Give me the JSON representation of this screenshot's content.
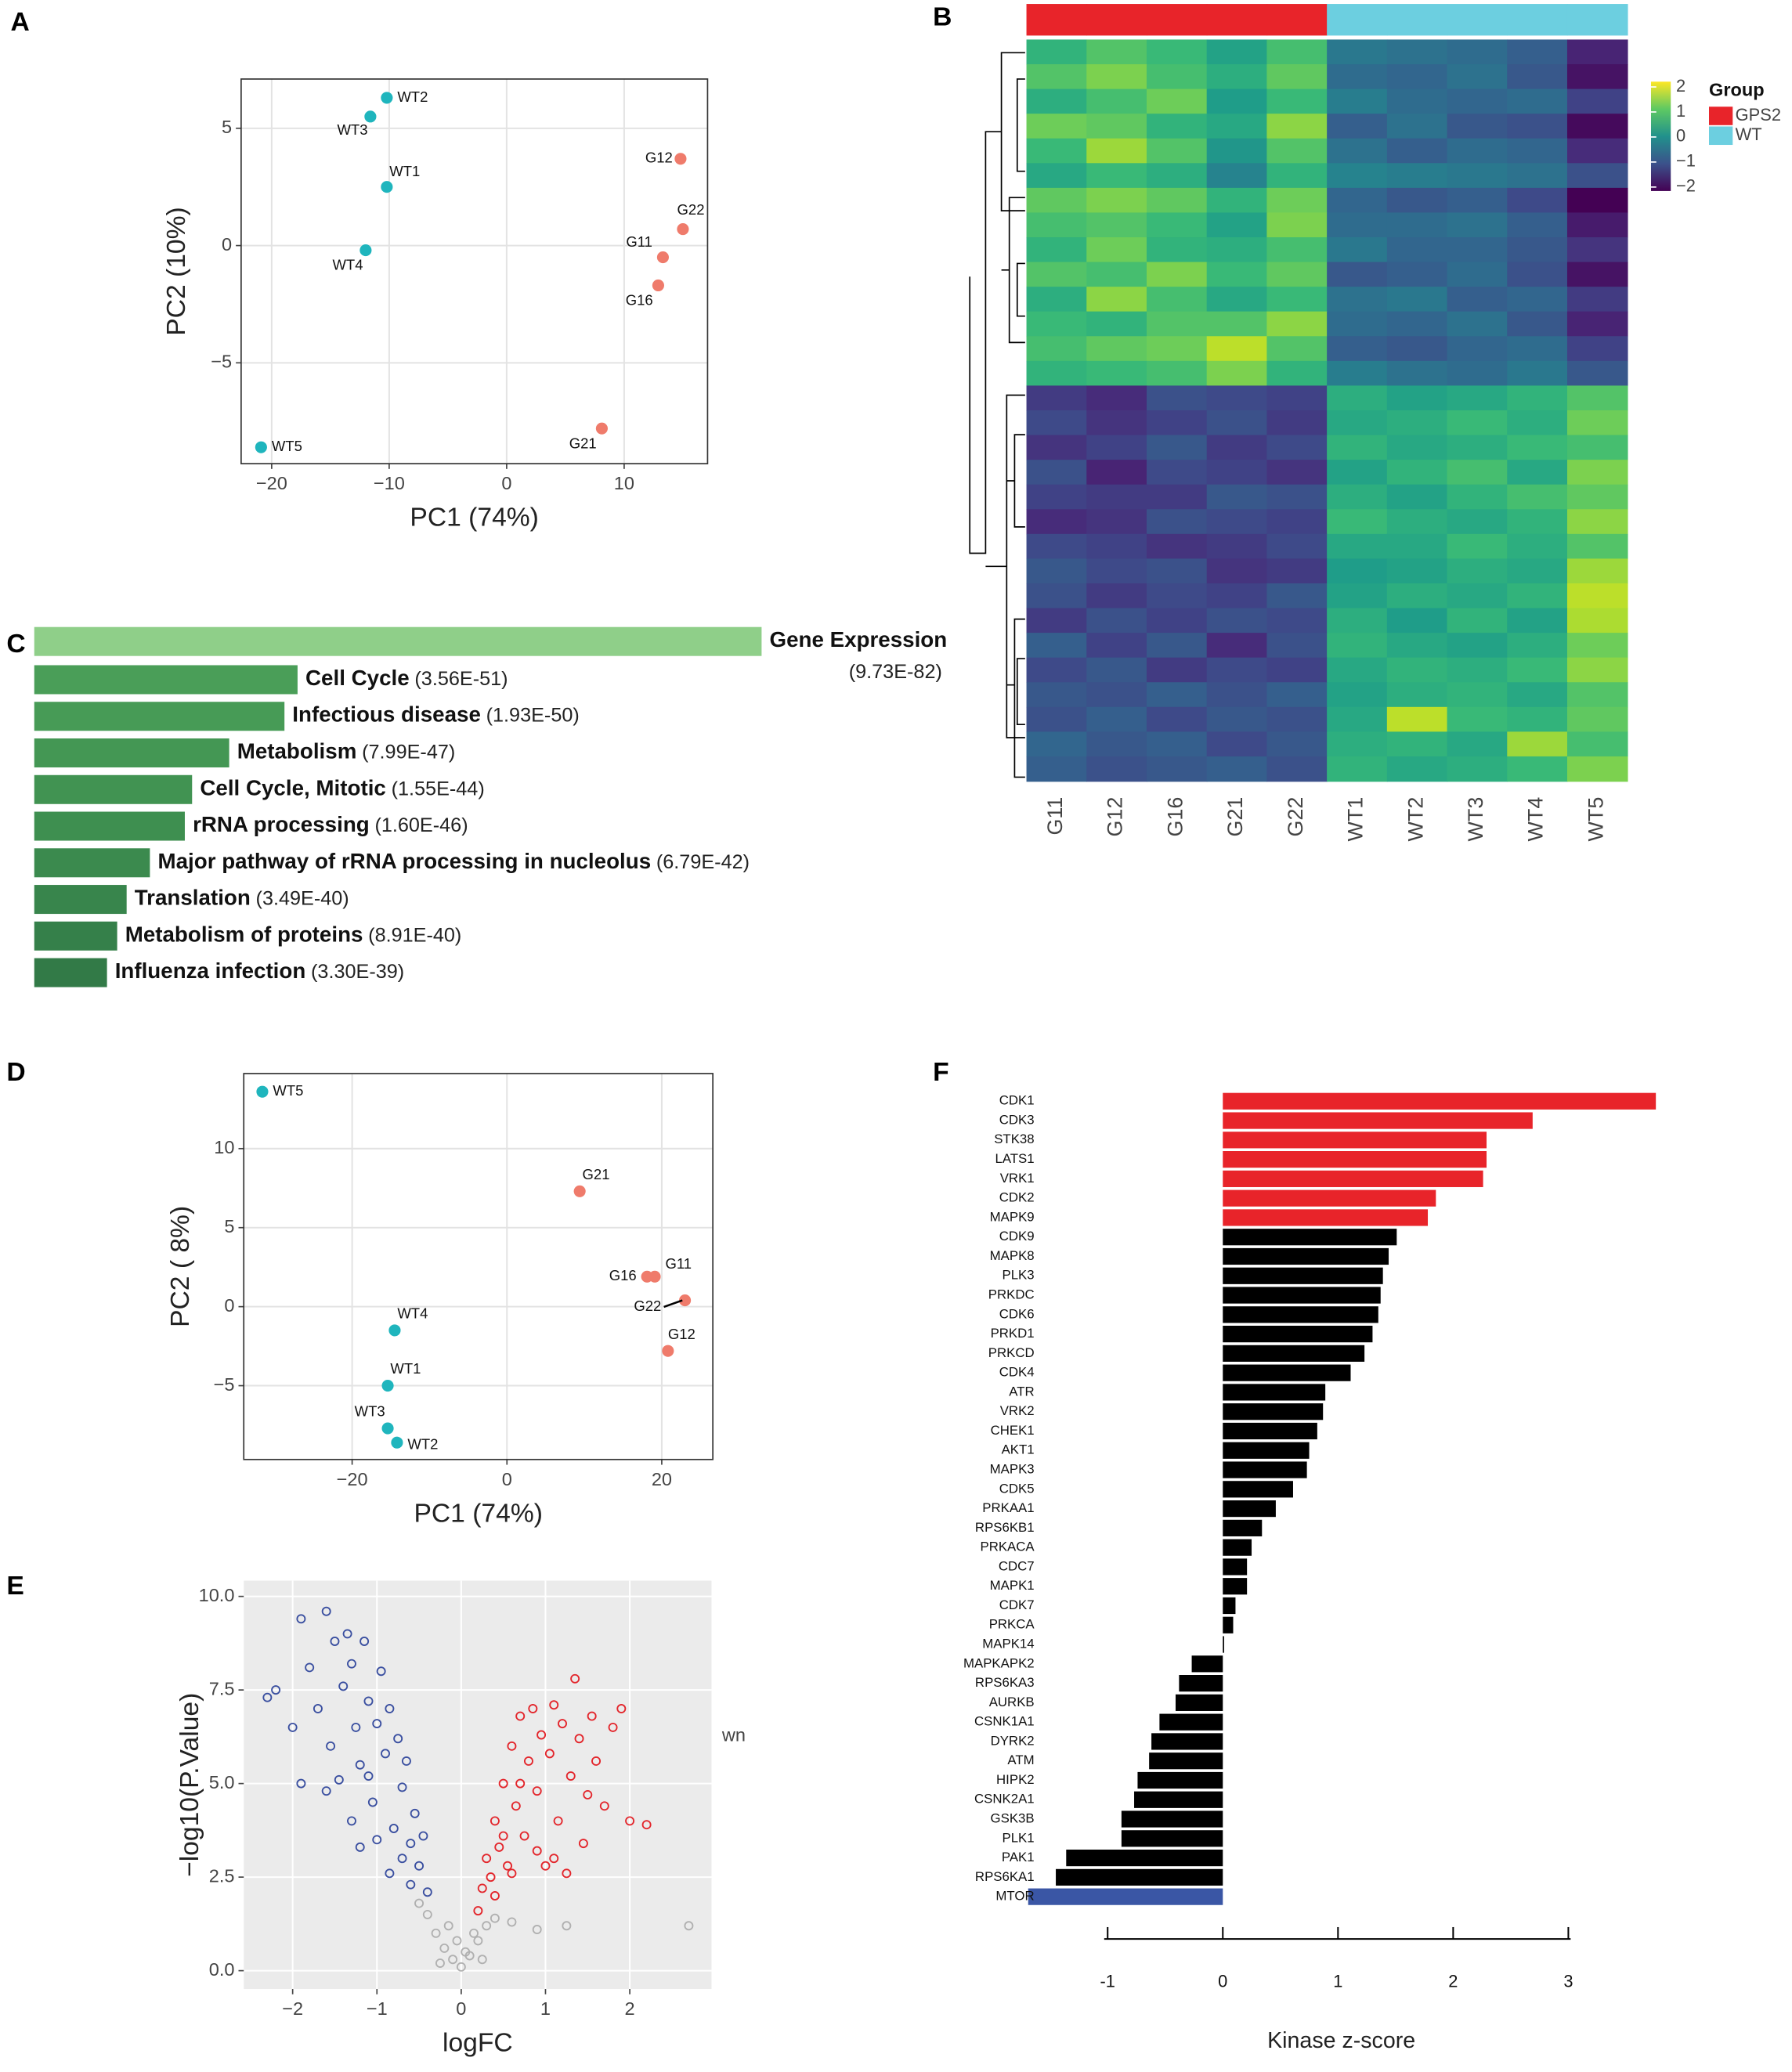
{
  "chart_data": [
    {
      "type": "scatter",
      "panel": "A",
      "xlabel": "PC1 (74%)",
      "ylabel": "PC2 (10%)",
      "xlim": [
        -22.6,
        17.1
      ],
      "ylim": [
        -9.3,
        7.1
      ],
      "xticks": [
        {
          "value": -20,
          "label": "−20"
        },
        {
          "value": -10,
          "label": "−10"
        },
        0,
        10
      ],
      "yticks": [
        {
          "value": -5,
          "label": "−5"
        },
        0,
        5
      ],
      "grid": true,
      "grid_color": "#e3e3e3",
      "background": "#ffffff",
      "frame": true,
      "series": [
        {
          "color": "#1fb5bd",
          "marker": "filled",
          "labels": [
            "WT2",
            "WT3",
            "WT1",
            "WT4",
            "WT5"
          ],
          "x": [
            -10.2,
            -11.6,
            -10.2,
            -12.0,
            -20.9
          ],
          "y": [
            6.3,
            5.5,
            2.5,
            -0.2,
            -8.6
          ]
        },
        {
          "color": "#ef7b6b",
          "marker": "filled",
          "labels": [
            "G12",
            "G22",
            "G11",
            "G16",
            "G21"
          ],
          "x": [
            14.8,
            15.0,
            13.3,
            12.9,
            8.1
          ],
          "y": [
            3.7,
            0.7,
            -0.5,
            -1.7,
            -7.8
          ]
        }
      ]
    },
    {
      "type": "heatmap",
      "panel": "B",
      "columns": [
        "G11",
        "G12",
        "G16",
        "G21",
        "G22",
        "WT1",
        "WT2",
        "WT3",
        "WT4",
        "WT5"
      ],
      "column_group": [
        0,
        0,
        0,
        0,
        0,
        1,
        1,
        1,
        1,
        1
      ],
      "clim": [
        -2,
        2
      ],
      "cticks": [
        2,
        1,
        0,
        {
          "value": -1,
          "label": "−1"
        },
        {
          "value": -2,
          "label": "−2"
        }
      ],
      "legend": {
        "title": "Group",
        "items": [
          {
            "name": "GPS2",
            "color": "#e8242a"
          },
          {
            "name": "WT",
            "color": "#6ccfe0"
          }
        ]
      },
      "values": [
        [
          0.6,
          0.9,
          0.7,
          0.3,
          0.8,
          -0.4,
          -0.5,
          -0.6,
          -0.8,
          -1.6
        ],
        [
          0.9,
          1.2,
          0.8,
          0.5,
          1.0,
          -0.6,
          -0.7,
          -0.5,
          -0.9,
          -1.8
        ],
        [
          0.5,
          0.8,
          1.1,
          0.2,
          0.7,
          -0.3,
          -0.6,
          -0.7,
          -0.6,
          -1.2
        ],
        [
          1.1,
          1.0,
          0.6,
          0.4,
          1.3,
          -0.8,
          -0.5,
          -0.9,
          -1.0,
          -1.9
        ],
        [
          0.7,
          1.4,
          0.9,
          0.1,
          0.9,
          -0.5,
          -0.8,
          -0.6,
          -0.7,
          -1.5
        ],
        [
          0.4,
          0.7,
          0.5,
          -0.2,
          0.6,
          -0.2,
          -0.3,
          -0.4,
          -0.5,
          -1.0
        ],
        [
          1.0,
          1.2,
          1.0,
          0.6,
          1.1,
          -0.7,
          -0.9,
          -0.8,
          -1.1,
          -2.0
        ],
        [
          0.8,
          0.9,
          0.7,
          0.3,
          1.2,
          -0.6,
          -0.6,
          -0.5,
          -0.8,
          -1.7
        ],
        [
          0.6,
          1.1,
          0.6,
          0.5,
          0.8,
          -0.4,
          -0.7,
          -0.7,
          -0.9,
          -1.4
        ],
        [
          0.9,
          0.8,
          1.2,
          0.7,
          1.0,
          -0.9,
          -0.8,
          -0.6,
          -1.0,
          -1.8
        ],
        [
          0.5,
          1.3,
          0.8,
          0.4,
          0.7,
          -0.5,
          -0.4,
          -0.8,
          -0.7,
          -1.3
        ],
        [
          0.7,
          0.6,
          0.9,
          0.9,
          1.3,
          -0.6,
          -0.7,
          -0.5,
          -0.9,
          -1.6
        ],
        [
          0.8,
          1.0,
          1.1,
          1.6,
          0.9,
          -0.8,
          -0.9,
          -0.7,
          -0.6,
          -1.2
        ],
        [
          0.6,
          0.7,
          0.8,
          1.2,
          0.6,
          -0.3,
          -0.5,
          -0.6,
          -0.4,
          -0.9
        ],
        [
          -1.3,
          -1.5,
          -1.0,
          -1.1,
          -1.2,
          0.5,
          0.3,
          0.4,
          0.6,
          0.9
        ],
        [
          -1.1,
          -1.4,
          -1.2,
          -1.0,
          -1.3,
          0.4,
          0.5,
          0.7,
          0.5,
          1.1
        ],
        [
          -1.4,
          -1.2,
          -0.9,
          -1.3,
          -1.1,
          0.6,
          0.4,
          0.5,
          0.7,
          0.8
        ],
        [
          -1.0,
          -1.6,
          -1.1,
          -1.2,
          -1.4,
          0.3,
          0.6,
          0.8,
          0.4,
          1.2
        ],
        [
          -1.2,
          -1.3,
          -1.3,
          -0.9,
          -1.0,
          0.5,
          0.3,
          0.6,
          0.8,
          1.0
        ],
        [
          -1.5,
          -1.4,
          -1.0,
          -1.1,
          -1.2,
          0.7,
          0.5,
          0.4,
          0.6,
          1.3
        ],
        [
          -1.1,
          -1.2,
          -1.4,
          -1.3,
          -1.1,
          0.4,
          0.4,
          0.7,
          0.5,
          0.9
        ],
        [
          -0.9,
          -1.1,
          -1.0,
          -1.4,
          -1.3,
          0.2,
          0.3,
          0.5,
          0.4,
          1.4
        ],
        [
          -1.0,
          -1.3,
          -1.1,
          -1.2,
          -0.9,
          0.3,
          0.5,
          0.4,
          0.6,
          1.6
        ],
        [
          -1.3,
          -1.0,
          -1.2,
          -1.0,
          -1.1,
          0.5,
          0.2,
          0.6,
          0.3,
          1.5
        ],
        [
          -0.8,
          -1.2,
          -0.9,
          -1.5,
          -1.0,
          0.6,
          0.4,
          0.3,
          0.5,
          1.1
        ],
        [
          -1.1,
          -0.9,
          -1.3,
          -1.1,
          -1.2,
          0.4,
          0.6,
          0.5,
          0.7,
          1.3
        ],
        [
          -0.9,
          -1.0,
          -0.8,
          -1.0,
          -0.8,
          0.3,
          0.5,
          0.6,
          0.4,
          0.9
        ],
        [
          -1.0,
          -0.8,
          -1.1,
          -0.9,
          -1.0,
          0.4,
          1.6,
          0.7,
          0.6,
          1.0
        ],
        [
          -0.7,
          -0.9,
          -0.8,
          -1.1,
          -0.9,
          0.5,
          0.6,
          0.4,
          1.4,
          0.8
        ],
        [
          -0.8,
          -1.0,
          -0.9,
          -0.8,
          -1.0,
          0.6,
          0.4,
          0.5,
          0.7,
          1.2
        ]
      ]
    },
    {
      "type": "hbar",
      "panel": "C",
      "categories": [
        "Gene Expression",
        "Cell Cycle",
        "Infectious disease",
        "Metabolism",
        "Cell Cycle, Mitotic",
        "rRNA processing",
        "Major pathway of rRNA processing in nucleolus",
        "Translation",
        "Metabolism of proteins",
        "Influenza infection"
      ],
      "p_labels": [
        "(9.73E-82)",
        "(3.56E-51)",
        "(1.93E-50)",
        "(7.99E-47)",
        "(1.55E-44)",
        "(1.60E-46)",
        "(6.79E-42)",
        "(3.49E-40)",
        "(8.91E-40)",
        "(3.30E-39)"
      ],
      "values": [
        100,
        36.2,
        34.4,
        26.8,
        21.7,
        20.7,
        15.9,
        12.7,
        11.4,
        10.0
      ],
      "colors": [
        "#8fcf89",
        "#4a9e58",
        "#479b56",
        "#449754",
        "#419352",
        "#3e8f50",
        "#3b8a4e",
        "#38854c",
        "#35804a",
        "#327a47"
      ]
    },
    {
      "type": "scatter",
      "panel": "D",
      "xlabel": "PC1 (74%)",
      "ylabel": "PC2 ( 8%)",
      "xlim": [
        -34.0,
        26.6
      ],
      "ylim": [
        -9.67,
        14.75
      ],
      "xticks": [
        {
          "value": -20,
          "label": "−20"
        },
        0,
        20
      ],
      "yticks": [
        {
          "value": -5,
          "label": "−5"
        },
        0,
        5,
        10
      ],
      "grid": true,
      "grid_color": "#e3e3e3",
      "background": "#ffffff",
      "frame": true,
      "series": [
        {
          "color": "#1fb5bd",
          "marker": "filled",
          "labels": [
            "WT5",
            "WT4",
            "WT1",
            "WT3",
            "WT2"
          ],
          "x": [
            -31.6,
            -14.5,
            -15.4,
            -15.4,
            -14.2
          ],
          "y": [
            13.6,
            -1.5,
            -5.0,
            -7.7,
            -8.6
          ]
        },
        {
          "color": "#ef7b6b",
          "marker": "filled",
          "labels": [
            "G21",
            "G16",
            "G11",
            "G22",
            "G12"
          ],
          "x": [
            9.4,
            18.1,
            19.1,
            23.0,
            20.8
          ],
          "y": [
            7.3,
            1.9,
            1.9,
            0.4,
            -2.8
          ]
        }
      ]
    },
    {
      "type": "scatter",
      "panel": "E",
      "xlabel": "logFC",
      "ylabel": "−log10(P.Value)",
      "annotation": "wn",
      "xlim": [
        -2.58,
        2.97
      ],
      "ylim": [
        -0.49,
        10.42
      ],
      "xticks": [
        {
          "value": -2,
          "label": "−2"
        },
        {
          "value": -1,
          "label": "−1"
        },
        0,
        1,
        2
      ],
      "yticks": [
        {
          "value": 0,
          "label": "0.0"
        },
        2.5,
        {
          "value": 5,
          "label": "5.0"
        },
        7.5,
        {
          "value": 10,
          "label": "10.0"
        }
      ],
      "grid": true,
      "grid_color": "#ffffff",
      "background": "#ebebeb",
      "frame": false,
      "series": [
        {
          "color": "#3a4fa0",
          "marker": "open",
          "x": [
            -2.3,
            -2.2,
            -2.0,
            -1.9,
            -1.8,
            -1.7,
            -1.6,
            -1.55,
            -1.5,
            -1.45,
            -1.4,
            -1.35,
            -1.3,
            -1.25,
            -1.2,
            -1.15,
            -1.1,
            -1.05,
            -1.0,
            -0.95,
            -0.9,
            -0.85,
            -0.8,
            -0.75,
            -0.7,
            -0.65,
            -0.6,
            -0.55,
            -0.5,
            -0.45,
            -0.4,
            -1.6,
            -1.9,
            -1.0,
            -0.85,
            -1.2,
            -0.7,
            -1.3,
            -1.1,
            -0.6
          ],
          "y": [
            7.3,
            7.5,
            6.5,
            9.4,
            8.1,
            7.0,
            9.6,
            6.0,
            8.8,
            5.1,
            7.6,
            9.0,
            8.2,
            6.5,
            5.5,
            8.8,
            7.2,
            4.5,
            6.6,
            8.0,
            5.8,
            7.0,
            3.8,
            6.2,
            4.9,
            5.6,
            3.4,
            4.2,
            2.8,
            3.6,
            2.1,
            4.8,
            5.0,
            3.5,
            2.6,
            3.3,
            3.0,
            4.0,
            5.2,
            2.3
          ]
        },
        {
          "color": "#e3252b",
          "marker": "open",
          "x": [
            0.2,
            0.25,
            0.3,
            0.35,
            0.4,
            0.45,
            0.5,
            0.55,
            0.6,
            0.65,
            0.7,
            0.75,
            0.8,
            0.85,
            0.9,
            0.95,
            1.0,
            1.05,
            1.1,
            1.15,
            1.2,
            1.25,
            1.3,
            1.4,
            1.45,
            1.5,
            1.55,
            1.6,
            1.7,
            1.8,
            1.9,
            2.0,
            2.2,
            0.6,
            0.9,
            0.4,
            1.35,
            0.7,
            1.1,
            0.5
          ],
          "y": [
            1.6,
            2.2,
            3.0,
            2.5,
            4.0,
            3.3,
            5.0,
            2.8,
            6.0,
            4.4,
            6.8,
            3.6,
            5.6,
            7.0,
            4.8,
            6.3,
            2.8,
            5.8,
            7.1,
            4.0,
            6.6,
            2.6,
            5.2,
            6.2,
            3.4,
            4.7,
            6.8,
            5.6,
            4.4,
            6.5,
            7.0,
            4.0,
            3.9,
            2.6,
            3.2,
            2.0,
            7.8,
            5.0,
            3.0,
            3.6
          ]
        },
        {
          "color": "#b0b0b0",
          "marker": "open",
          "x": [
            -0.3,
            -0.2,
            -0.1,
            0,
            0.1,
            0.2,
            0.3,
            -0.4,
            0.4,
            -0.5,
            0.6,
            0.9,
            1.25,
            2.7,
            -0.15,
            0.15,
            -0.05,
            0.05,
            -0.25,
            0.25
          ],
          "y": [
            1.0,
            0.6,
            0.3,
            0.1,
            0.4,
            0.8,
            1.2,
            1.5,
            1.4,
            1.8,
            1.3,
            1.1,
            1.2,
            1.2,
            1.2,
            1.0,
            0.8,
            0.5,
            0.2,
            0.3
          ]
        }
      ]
    },
    {
      "type": "kinase",
      "panel": "F",
      "xlabel": "Kinase z-score",
      "xlim": [
        -1.03,
        3.02
      ],
      "xticks": [
        {
          "value": -1,
          "label": "-1"
        },
        0,
        1,
        2,
        3
      ],
      "categories": [
        "CDK1",
        "CDK3",
        "STK38",
        "LATS1",
        "VRK1",
        "CDK2",
        "MAPK9",
        "CDK9",
        "MAPK8",
        "PLK3",
        "PRKDC",
        "CDK6",
        "PRKD1",
        "PRKCD",
        "CDK4",
        "ATR",
        "VRK2",
        "CHEK1",
        "AKT1",
        "MAPK3",
        "CDK5",
        "PRKAA1",
        "RPS6KB1",
        "PRKACA",
        "CDC7",
        "MAPK1",
        "CDK7",
        "PRKCA",
        "MAPK14",
        "MAPKAPK2",
        "RPS6KA3",
        "AURKB",
        "CSNK1A1",
        "DYRK2",
        "ATM",
        "HIPK2",
        "CSNK2A1",
        "GSK3B",
        "PLK1",
        "PAK1",
        "RPS6KA1",
        "MTOR"
      ],
      "values": [
        3.76,
        2.69,
        2.29,
        2.29,
        2.26,
        1.85,
        1.78,
        1.51,
        1.44,
        1.39,
        1.37,
        1.35,
        1.3,
        1.23,
        1.11,
        0.89,
        0.87,
        0.82,
        0.75,
        0.73,
        0.61,
        0.46,
        0.34,
        0.25,
        0.21,
        0.21,
        0.11,
        0.09,
        0.01,
        -0.27,
        -0.38,
        -0.41,
        -0.55,
        -0.62,
        -0.64,
        -0.74,
        -0.77,
        -0.88,
        -0.88,
        -1.36,
        -1.45,
        -1.69
      ],
      "colors": [
        "#e8242a",
        "#e8242a",
        "#e8242a",
        "#e8242a",
        "#e8242a",
        "#e8242a",
        "#e8242a",
        "#000000",
        "#000000",
        "#000000",
        "#000000",
        "#000000",
        "#000000",
        "#000000",
        "#000000",
        "#000000",
        "#000000",
        "#000000",
        "#000000",
        "#000000",
        "#000000",
        "#000000",
        "#000000",
        "#000000",
        "#000000",
        "#000000",
        "#000000",
        "#000000",
        "#000000",
        "#000000",
        "#000000",
        "#000000",
        "#000000",
        "#000000",
        "#000000",
        "#000000",
        "#000000",
        "#000000",
        "#000000",
        "#000000",
        "#000000",
        "#3a56a5"
      ]
    }
  ]
}
